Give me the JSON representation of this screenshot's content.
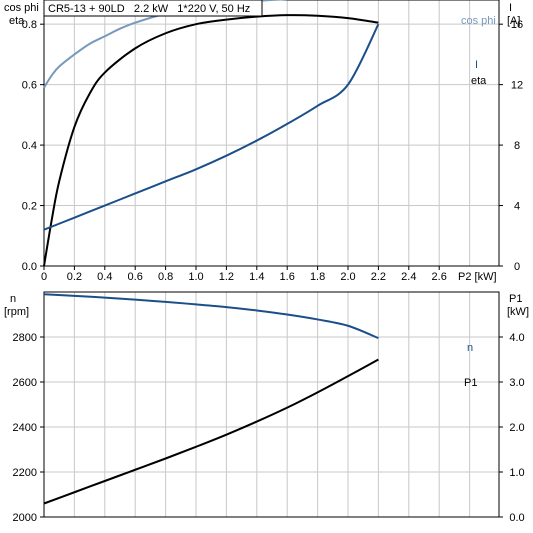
{
  "header": {
    "title": "CR5-13 + 90LD   2.2 kW   1*220 V, 50 Hz"
  },
  "chart_data": [
    {
      "type": "line",
      "panel": "top",
      "x_tick_labels": [
        "0",
        "0.2",
        "0.4",
        "0.6",
        "0.8",
        "1.0",
        "1.2",
        "1.4",
        "1.6",
        "1.8",
        "2.0",
        "2.2",
        "2.4",
        "2.6"
      ],
      "x_unit_label": "P2 [kW]",
      "xlim": [
        0,
        2.2
      ],
      "left_axis": {
        "label_line1": "cos phi",
        "label_line2": "eta",
        "ylim": [
          0,
          0.88
        ],
        "ticks": [
          0,
          0.2,
          0.4,
          0.6,
          0.8
        ],
        "tick_labels": [
          "0.0",
          "0.2",
          "0.4",
          "0.6",
          "0.8"
        ]
      },
      "right_axis": {
        "label_line1": "I",
        "label_line2": "[A]",
        "ylim": [
          0,
          17.6
        ],
        "ticks": [
          0,
          4,
          8,
          12,
          16
        ],
        "tick_labels": [
          "0",
          "4",
          "8",
          "12",
          "16"
        ]
      },
      "grid": true,
      "series": [
        {
          "name": "cos phi",
          "axis": "left",
          "color": "#7799bb",
          "x": [
            0,
            0.05,
            0.1,
            0.2,
            0.3,
            0.4,
            0.5,
            0.6,
            0.8,
            1.0,
            1.2,
            1.4,
            1.6,
            1.8,
            2.0,
            2.2
          ],
          "y": [
            0.59,
            0.63,
            0.66,
            0.7,
            0.735,
            0.76,
            0.785,
            0.805,
            0.835,
            0.855,
            0.868,
            0.877,
            0.883,
            0.887,
            0.89,
            0.892
          ]
        },
        {
          "name": "eta",
          "axis": "left",
          "color": "#000000",
          "x": [
            0,
            0.05,
            0.1,
            0.2,
            0.3,
            0.4,
            0.6,
            0.8,
            1.0,
            1.2,
            1.4,
            1.6,
            1.8,
            2.0,
            2.2
          ],
          "y": [
            0.0,
            0.15,
            0.28,
            0.46,
            0.57,
            0.64,
            0.72,
            0.77,
            0.8,
            0.815,
            0.825,
            0.83,
            0.828,
            0.82,
            0.805
          ]
        },
        {
          "name": "I",
          "axis": "right",
          "color": "#1b4f8a",
          "x": [
            0,
            0.2,
            0.4,
            0.6,
            0.8,
            1.0,
            1.2,
            1.4,
            1.6,
            1.8,
            2.0,
            2.2
          ],
          "y": [
            2.4,
            3.2,
            4.0,
            4.8,
            5.6,
            6.4,
            7.3,
            8.3,
            9.4,
            10.6,
            12.0,
            16.0
          ]
        }
      ]
    },
    {
      "type": "line",
      "panel": "bottom",
      "xlim": [
        0,
        2.2
      ],
      "left_axis": {
        "label_line1": "n",
        "label_line2": "[rpm]",
        "ylim": [
          2000,
          3000
        ],
        "ticks": [
          2000,
          2200,
          2400,
          2600,
          2800
        ],
        "tick_labels": [
          "2000",
          "2200",
          "2400",
          "2600",
          "2800"
        ]
      },
      "right_axis": {
        "label_line1": "P1",
        "label_line2": "[kW]",
        "ylim": [
          0,
          5.0
        ],
        "ticks": [
          0,
          1,
          2,
          3,
          4
        ],
        "tick_labels": [
          "0.0",
          "1.0",
          "2.0",
          "3.0",
          "4.0"
        ]
      },
      "grid": true,
      "series": [
        {
          "name": "n",
          "axis": "left",
          "color": "#1b4f8a",
          "x": [
            0,
            0.2,
            0.4,
            0.6,
            0.8,
            1.0,
            1.2,
            1.4,
            1.6,
            1.8,
            2.0,
            2.2
          ],
          "y": [
            2990,
            2983,
            2975,
            2966,
            2956,
            2945,
            2933,
            2918,
            2900,
            2878,
            2850,
            2795
          ]
        },
        {
          "name": "P1",
          "axis": "right",
          "color": "#000000",
          "x": [
            0,
            0.2,
            0.4,
            0.6,
            0.8,
            1.0,
            1.2,
            1.4,
            1.6,
            1.8,
            2.0,
            2.2
          ],
          "y": [
            0.3,
            0.55,
            0.8,
            1.05,
            1.3,
            1.56,
            1.83,
            2.12,
            2.43,
            2.77,
            3.13,
            3.5
          ]
        }
      ]
    }
  ]
}
